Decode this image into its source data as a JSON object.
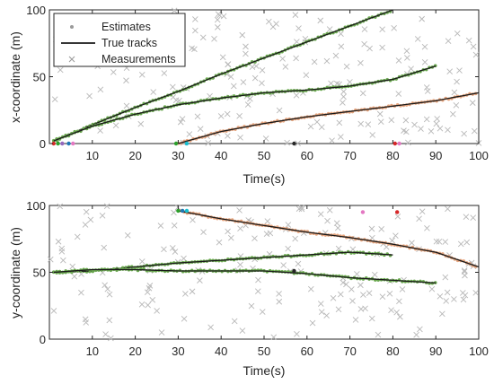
{
  "chart_data": [
    {
      "type": "line",
      "xlabel": "Time(s)",
      "ylabel": "x-coordinate (m)",
      "xlim": [
        0,
        100
      ],
      "ylim": [
        0,
        100
      ],
      "xticks": [
        10,
        20,
        30,
        40,
        50,
        60,
        70,
        80,
        90,
        100
      ],
      "yticks": [
        0,
        50,
        100
      ],
      "grid": false,
      "legend": {
        "position": "top-left",
        "entries": [
          "Estimates",
          "True tracks",
          "Measurements"
        ]
      },
      "tracks": [
        {
          "x": [
            1,
            10,
            20,
            30,
            40,
            50,
            60,
            70,
            80
          ],
          "y": [
            2,
            14,
            27,
            39,
            52,
            64,
            76,
            88,
            100
          ]
        },
        {
          "x": [
            1,
            10,
            20,
            30,
            40,
            50,
            60,
            70,
            80,
            90
          ],
          "y": [
            2,
            13,
            22,
            29,
            34,
            38,
            40,
            43,
            48,
            58
          ]
        },
        {
          "x": [
            30,
            40,
            50,
            60,
            70,
            80,
            90,
            100
          ],
          "y": [
            0,
            9,
            15,
            20,
            24,
            28,
            32,
            38
          ]
        }
      ],
      "measurement_count": 180,
      "spurious_points": [
        {
          "x": 1,
          "y": 0,
          "color": "#d62728"
        },
        {
          "x": 2,
          "y": 0,
          "color": "#2ca02c"
        },
        {
          "x": 3,
          "y": 0,
          "color": "#9467bd"
        },
        {
          "x": 4.5,
          "y": 0,
          "color": "#1f77b4"
        },
        {
          "x": 5.5,
          "y": 0,
          "color": "#e377c2"
        },
        {
          "x": 29.5,
          "y": 0,
          "color": "#2ca02c"
        },
        {
          "x": 32,
          "y": 0,
          "color": "#17becf"
        },
        {
          "x": 57,
          "y": 0,
          "color": "#262626"
        },
        {
          "x": 80.5,
          "y": 0,
          "color": "#d62728"
        },
        {
          "x": 81.5,
          "y": 0,
          "color": "#e377c2"
        }
      ]
    },
    {
      "type": "line",
      "xlabel": "Time(s)",
      "ylabel": "y-coordinate (m)",
      "xlim": [
        0,
        100
      ],
      "ylim": [
        0,
        100
      ],
      "xticks": [
        10,
        20,
        30,
        40,
        50,
        60,
        70,
        80,
        90,
        100
      ],
      "yticks": [
        0,
        50,
        100
      ],
      "grid": false,
      "tracks": [
        {
          "x": [
            30,
            40,
            50,
            60,
            70,
            80,
            90,
            100
          ],
          "y": [
            96,
            90,
            85,
            80,
            76,
            71,
            65,
            54
          ]
        },
        {
          "x": [
            1,
            10,
            20,
            30,
            40,
            50,
            60,
            70,
            80
          ],
          "y": [
            50,
            51,
            54,
            57,
            59,
            61,
            63,
            65,
            63
          ]
        },
        {
          "x": [
            1,
            10,
            20,
            30,
            40,
            50,
            60,
            70,
            80,
            90
          ],
          "y": [
            50,
            52,
            52,
            51,
            51,
            51,
            49,
            46,
            44,
            42
          ]
        }
      ],
      "measurement_count": 180,
      "spurious_points": [
        {
          "x": 30,
          "y": 96,
          "color": "#2ca02c"
        },
        {
          "x": 31,
          "y": 96,
          "color": "#1f77b4"
        },
        {
          "x": 32,
          "y": 96,
          "color": "#17becf"
        },
        {
          "x": 57,
          "y": 51,
          "color": "#262626"
        },
        {
          "x": 73,
          "y": 95,
          "color": "#e377c2"
        },
        {
          "x": 81,
          "y": 95,
          "color": "#d62728"
        }
      ]
    }
  ],
  "colors": {
    "true_track": "#1a1a1a",
    "estimate_first_track": "#6aa84f",
    "estimate_late_track": "#e6a57e",
    "measurement": "#b8b8b8",
    "axis": "#262626"
  }
}
